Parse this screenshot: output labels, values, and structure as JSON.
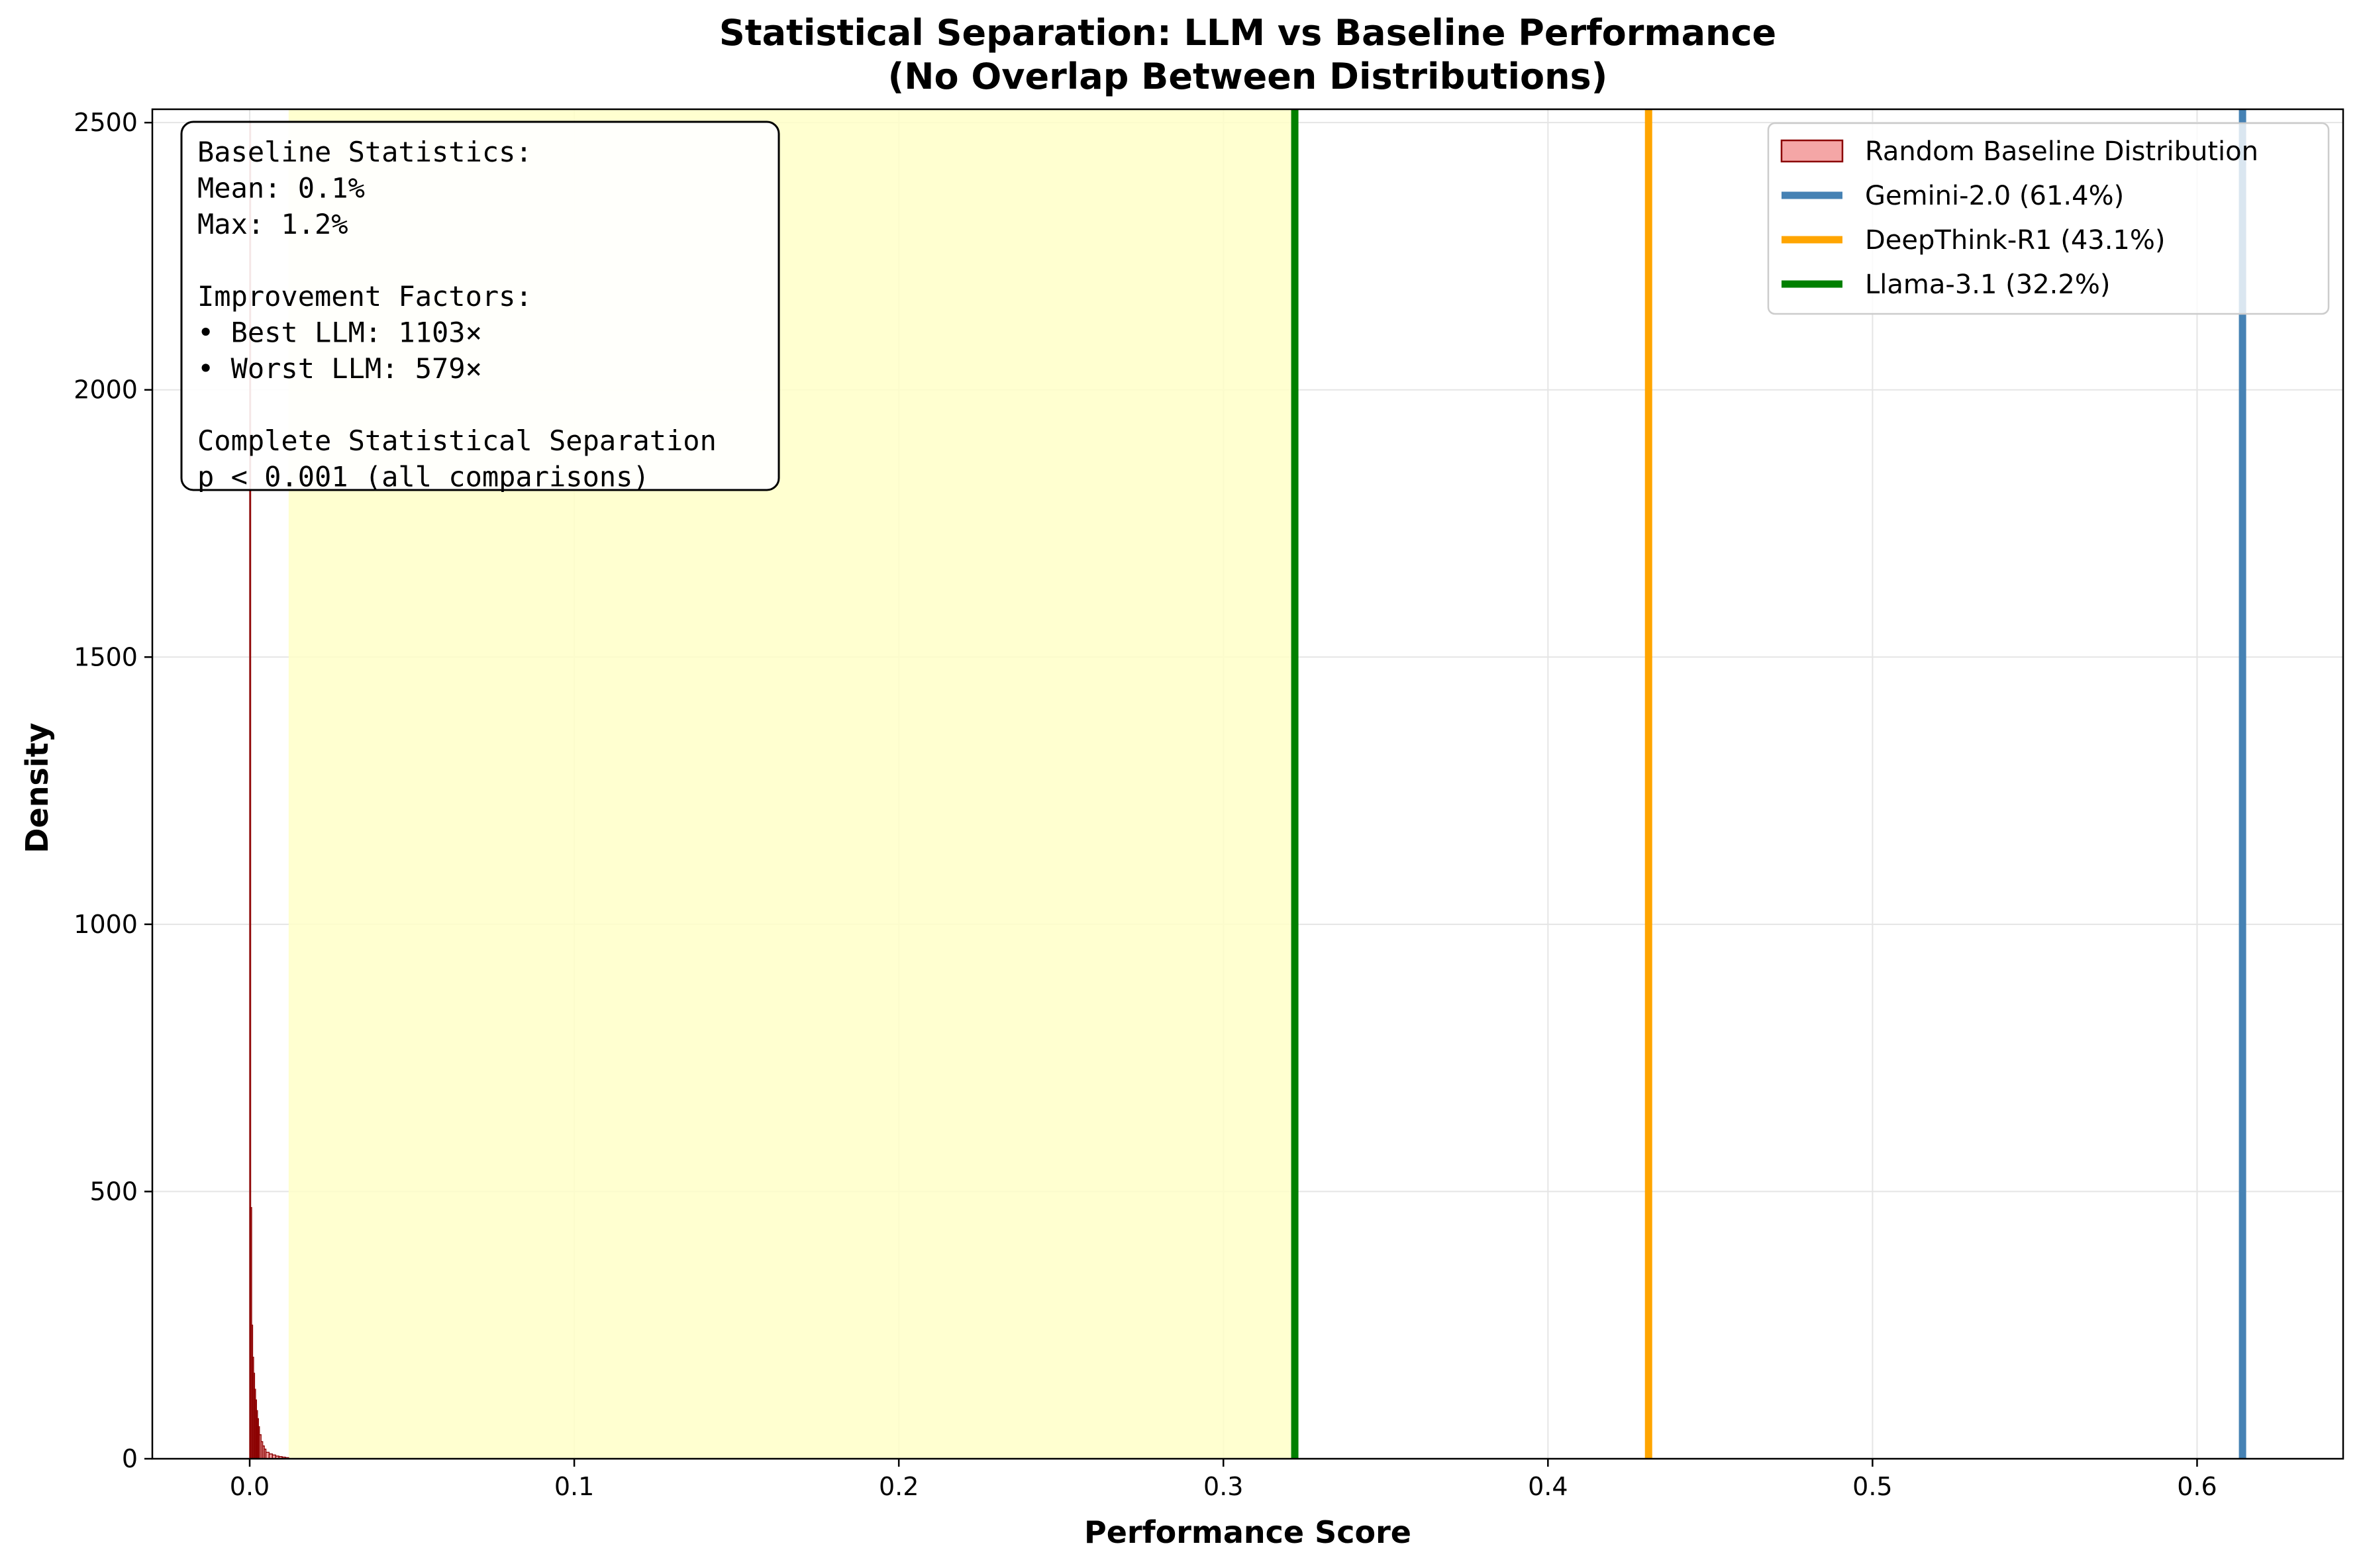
{
  "chart_data": {
    "type": "histogram",
    "title_line1": "Statistical Separation: LLM vs Baseline Performance",
    "title_line2": "(No Overlap Between Distributions)",
    "xlabel": "Performance Score",
    "ylabel": "Density",
    "xlim": [
      -0.03,
      0.645
    ],
    "ylim": [
      0,
      2525
    ],
    "x_ticks": [
      0.0,
      0.1,
      0.2,
      0.3,
      0.4,
      0.5,
      0.6
    ],
    "x_tick_labels": [
      "0.0",
      "0.1",
      "0.2",
      "0.3",
      "0.4",
      "0.5",
      "0.6"
    ],
    "y_ticks": [
      0,
      500,
      1000,
      1500,
      2000,
      2500
    ],
    "y_tick_labels": [
      "0",
      "500",
      "1000",
      "1500",
      "2000",
      "2500"
    ],
    "grid": true,
    "shaded_region": {
      "x_start": 0.012,
      "x_end": 0.322,
      "color": "#ffffc8"
    },
    "baseline_histogram": {
      "name": "Random Baseline Distribution",
      "face_color": "#f4a6a6",
      "edge_color": "#8b0000",
      "bins": [
        {
          "x0": 0.0,
          "x1": 0.0003,
          "density": 2500
        },
        {
          "x0": 0.0003,
          "x1": 0.0006,
          "density": 470
        },
        {
          "x0": 0.0006,
          "x1": 0.0009,
          "density": 250
        },
        {
          "x0": 0.0009,
          "x1": 0.0012,
          "density": 190
        },
        {
          "x0": 0.0012,
          "x1": 0.0015,
          "density": 160
        },
        {
          "x0": 0.0015,
          "x1": 0.0018,
          "density": 130
        },
        {
          "x0": 0.0018,
          "x1": 0.0021,
          "density": 110
        },
        {
          "x0": 0.0021,
          "x1": 0.0024,
          "density": 90
        },
        {
          "x0": 0.0024,
          "x1": 0.0027,
          "density": 75
        },
        {
          "x0": 0.0027,
          "x1": 0.003,
          "density": 60
        },
        {
          "x0": 0.003,
          "x1": 0.0035,
          "density": 45
        },
        {
          "x0": 0.0035,
          "x1": 0.004,
          "density": 32
        },
        {
          "x0": 0.004,
          "x1": 0.0045,
          "density": 24
        },
        {
          "x0": 0.0045,
          "x1": 0.005,
          "density": 18
        },
        {
          "x0": 0.005,
          "x1": 0.006,
          "density": 12
        },
        {
          "x0": 0.006,
          "x1": 0.007,
          "density": 9
        },
        {
          "x0": 0.007,
          "x1": 0.008,
          "density": 7
        },
        {
          "x0": 0.008,
          "x1": 0.009,
          "density": 5
        },
        {
          "x0": 0.009,
          "x1": 0.01,
          "density": 4
        },
        {
          "x0": 0.01,
          "x1": 0.011,
          "density": 3
        },
        {
          "x0": 0.011,
          "x1": 0.012,
          "density": 2
        }
      ]
    },
    "vertical_lines": [
      {
        "name": "Gemini-2.0 (61.4%)",
        "x": 0.614,
        "color": "#4682b4"
      },
      {
        "name": "DeepThink-R1 (43.1%)",
        "x": 0.431,
        "color": "#ffa500"
      },
      {
        "name": "Llama-3.1 (32.2%)",
        "x": 0.322,
        "color": "#008000"
      }
    ],
    "legend_position": "top-right",
    "stats_box_lines": [
      "Baseline Statistics:",
      "Mean: 0.1%",
      "Max: 1.2%",
      "",
      "Improvement Factors:",
      "• Best LLM: 1103×",
      "• Worst LLM: 579×",
      "",
      "Complete Statistical Separation",
      "p < 0.001 (all comparisons)"
    ]
  }
}
